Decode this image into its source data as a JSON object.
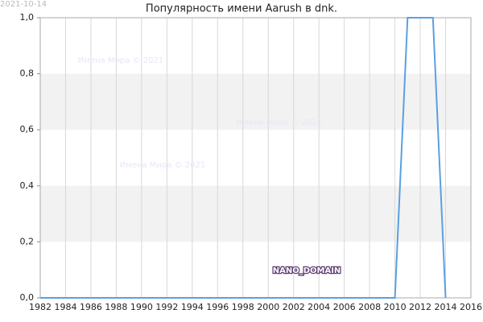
{
  "chart_data": {
    "type": "line",
    "title": "Популярность имени Aarush в dnk.",
    "date": "2021-10-14",
    "watermarks": [
      "Имена Мира © 2021",
      "Имена Мира © 2021",
      "Имена Мира © 2021"
    ],
    "brand": "NANO_DOMAIN",
    "x": [
      1982,
      1983,
      1984,
      1985,
      1986,
      1987,
      1988,
      1989,
      1990,
      1991,
      1992,
      1993,
      1994,
      1995,
      1996,
      1997,
      1998,
      1999,
      2000,
      2001,
      2002,
      2003,
      2004,
      2005,
      2006,
      2007,
      2008,
      2009,
      2010,
      2011,
      2012,
      2013,
      2014
    ],
    "values": [
      0,
      0,
      0,
      0,
      0,
      0,
      0,
      0,
      0,
      0,
      0,
      0,
      0,
      0,
      0,
      0,
      0,
      0,
      0,
      0,
      0,
      0,
      0,
      0,
      0,
      0,
      0,
      0,
      0,
      1,
      1,
      1,
      0
    ],
    "color": "#5b9fe3",
    "xlim": [
      1982,
      2016
    ],
    "xticks": [
      1982,
      1984,
      1986,
      1988,
      1990,
      1992,
      1994,
      1996,
      1998,
      2000,
      2002,
      2004,
      2006,
      2008,
      2010,
      2012,
      2014,
      2016
    ],
    "ylim": [
      0,
      1
    ],
    "yticks": [
      {
        "value": 0,
        "label": "0,0"
      },
      {
        "value": 0.2,
        "label": "0,2"
      },
      {
        "value": 0.4,
        "label": "0,4"
      },
      {
        "value": 0.6,
        "label": "0,6"
      },
      {
        "value": 0.8,
        "label": "0,8"
      },
      {
        "value": 1,
        "label": "1,0"
      }
    ],
    "shaded_bands": [
      [
        0.2,
        0.4
      ],
      [
        0.6,
        0.8
      ]
    ],
    "grid": true
  }
}
